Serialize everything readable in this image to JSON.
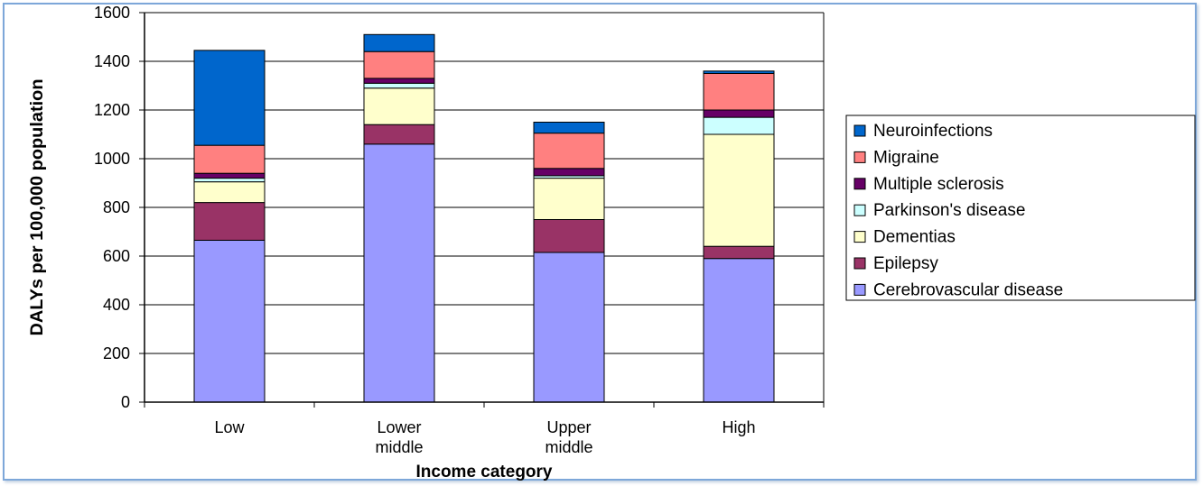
{
  "colors": {
    "Cerebrovascular disease": "#9999ff",
    "Epilepsy": "#993366",
    "Dementias": "#ffffcc",
    "Parkinson's disease": "#ccffff",
    "Multiple sclerosis": "#660066",
    "Migraine": "#ff8080",
    "Neuroinfections": "#0066cc",
    "frame": "#7da7d9"
  },
  "chart_data": {
    "type": "bar",
    "stacked": true,
    "title": "",
    "xlabel": "Income category",
    "ylabel": "DALYs per 100,000 population",
    "ylim": [
      0,
      1600
    ],
    "yticks": [
      0,
      200,
      400,
      600,
      800,
      1000,
      1200,
      1400,
      1600
    ],
    "grid": true,
    "legend_position": "right",
    "categories": [
      [
        "Low"
      ],
      [
        "Lower",
        "middle"
      ],
      [
        "Upper",
        "middle"
      ],
      [
        "High"
      ]
    ],
    "series": [
      {
        "name": "Cerebrovascular disease",
        "values": [
          665,
          1060,
          615,
          590
        ]
      },
      {
        "name": "Epilepsy",
        "values": [
          155,
          80,
          135,
          50
        ]
      },
      {
        "name": "Dementias",
        "values": [
          85,
          150,
          170,
          460
        ]
      },
      {
        "name": "Parkinson's disease",
        "values": [
          15,
          20,
          10,
          70
        ]
      },
      {
        "name": "Multiple sclerosis",
        "values": [
          20,
          20,
          30,
          30
        ]
      },
      {
        "name": "Migraine",
        "values": [
          115,
          110,
          145,
          150
        ]
      },
      {
        "name": "Neuroinfections",
        "values": [
          390,
          70,
          45,
          10
        ]
      }
    ],
    "legend_order": [
      "Neuroinfections",
      "Migraine",
      "Multiple sclerosis",
      "Parkinson's disease",
      "Dementias",
      "Epilepsy",
      "Cerebrovascular disease"
    ]
  }
}
